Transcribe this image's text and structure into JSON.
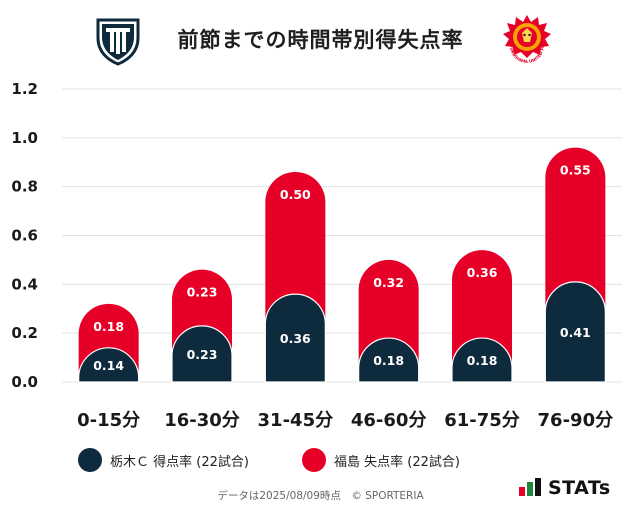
{
  "title": "前節までの時間帯別得失点率",
  "teams": {
    "home_logo": "tochigi-sc-crest",
    "away_logo": "fukushima-united-crest",
    "away_logo_text": "FUKUSHIMA UNITED FC"
  },
  "colors": {
    "series1": "#0e2a3d",
    "series2": "#e60027",
    "grid": "#e3e3e3",
    "axis_text": "#1a1a1a"
  },
  "chart_data": {
    "type": "bar",
    "stacked": true,
    "title": "前節までの時間帯別得失点率",
    "categories": [
      "0-15分",
      "16-30分",
      "31-45分",
      "46-60分",
      "61-75分",
      "76-90分"
    ],
    "series": [
      {
        "name": "栃木Ｃ 得点率 (22試合)",
        "values": [
          0.14,
          0.23,
          0.36,
          0.18,
          0.18,
          0.41
        ]
      },
      {
        "name": "福島 失点率 (22試合)",
        "values": [
          0.18,
          0.23,
          0.5,
          0.32,
          0.36,
          0.55
        ]
      }
    ],
    "value_labels": [
      [
        "0.14",
        "0.23",
        "0.36",
        "0.18",
        "0.18",
        "0.41"
      ],
      [
        "0.18",
        "0.23",
        "0.50",
        "0.32",
        "0.36",
        "0.55"
      ]
    ],
    "ylim": [
      0,
      1.2
    ],
    "yticks": [
      0,
      0.2,
      0.4,
      0.6,
      0.8,
      1.0,
      1.2
    ],
    "ytick_labels": [
      "0.0",
      "0.2",
      "0.4",
      "0.6",
      "0.8",
      "1.0",
      "1.2"
    ],
    "grid": true,
    "legend_position": "bottom",
    "xlabel": "",
    "ylabel": ""
  },
  "footnote": "データは2025/08/09時点　© SPORTERIA",
  "brand": "STATs"
}
